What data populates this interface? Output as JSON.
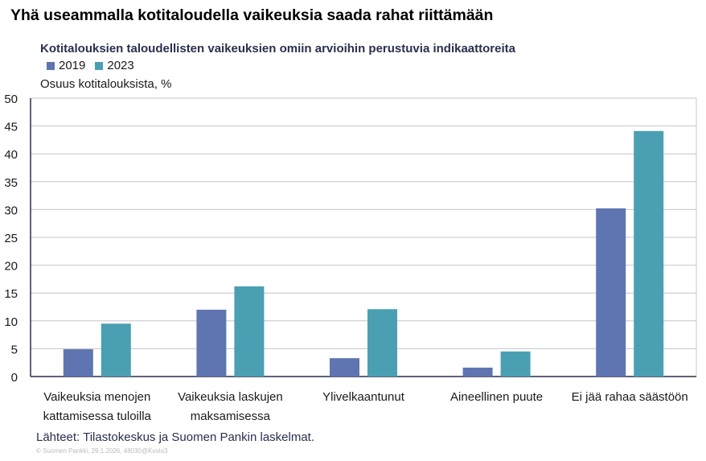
{
  "title": "Yhä useammalla kotitaloudella vaikeuksia saada rahat riittämään",
  "source": "Lähteet: Tilastokeskus ja Suomen Pankin laskelmat.",
  "copyright": "© Suomen Pankki, 29.1.2026, 48030@Kuvio3",
  "colors": {
    "2019": "#5f75b1",
    "2023": "#4aa0b2"
  },
  "chart_data": {
    "type": "bar",
    "subtitle": "Kotitalouksien taloudellisten vaikeuksien omiin arvioihin perustuvia indikaattoreita",
    "ylabel": "Osuus kotitalouksista, %",
    "ylim": [
      0,
      50
    ],
    "yticks": [
      "0",
      "5",
      "10",
      "15",
      "20",
      "25",
      "30",
      "35",
      "40",
      "45",
      "50"
    ],
    "grid": true,
    "legend": "top-left",
    "categories": [
      [
        "Vaikeuksia menojen",
        "kattamisessa tuloilla"
      ],
      [
        "Vaikeuksia laskujen",
        "maksamisessa"
      ],
      [
        "Ylivelkaantunut"
      ],
      [
        "Aineellinen puute"
      ],
      [
        "Ei jää rahaa säästöön"
      ]
    ],
    "series": [
      {
        "name": "2019",
        "values": [
          4.9,
          12.0,
          3.3,
          1.6,
          30.2
        ]
      },
      {
        "name": "2023",
        "values": [
          9.5,
          16.2,
          12.1,
          4.5,
          44.1
        ]
      }
    ]
  }
}
